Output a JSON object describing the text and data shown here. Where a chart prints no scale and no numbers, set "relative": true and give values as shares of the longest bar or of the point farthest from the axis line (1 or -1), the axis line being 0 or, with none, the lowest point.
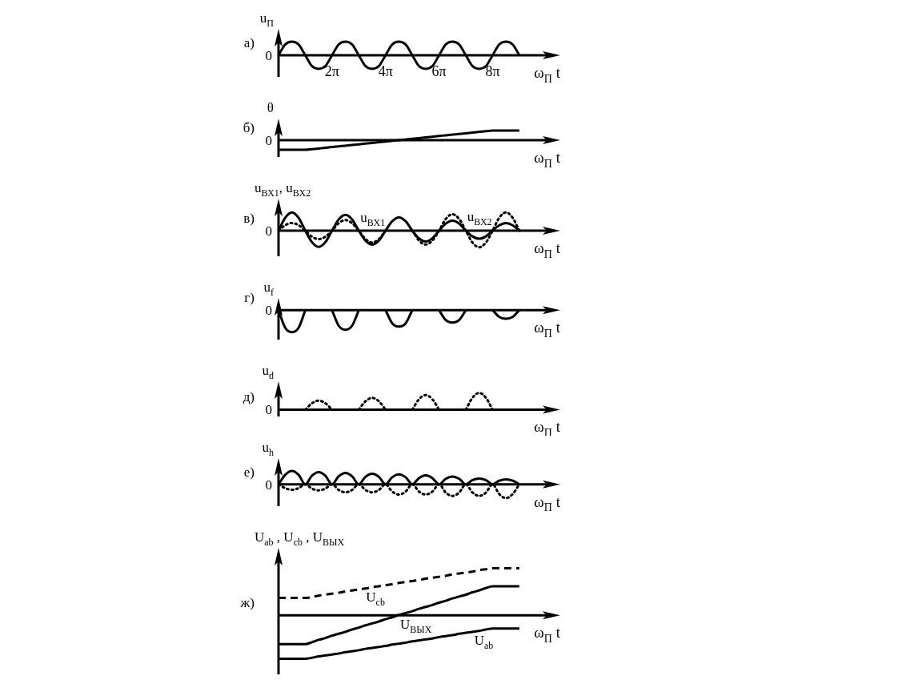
{
  "chart_data": [
    {
      "type": "line",
      "relative": true,
      "ylabel": "u$_{П}$",
      "xlabel": "ω$_{П}$ t",
      "annotations": [
        "а)",
        "0"
      ],
      "marker": "none",
      "tick_labels": "x",
      "categories": [
        null,
        null,
        null,
        null,
        null,
        null,
        null,
        null,
        "2π",
        null,
        null,
        null,
        null,
        null,
        null,
        null,
        "4π",
        null,
        null,
        null,
        null,
        null,
        null,
        null,
        "6π",
        null,
        null,
        null,
        null,
        null,
        null,
        null,
        "8π",
        null,
        null,
        null,
        null
      ],
      "series": [
        {
          "color": "#000000",
          "line_style": "solid",
          "values": [
            0,
            0.8,
            1,
            0.8,
            0,
            -0.8,
            -1,
            -0.8,
            0,
            0.8,
            1,
            0.8,
            0,
            -0.8,
            -1,
            -0.8,
            0,
            0.8,
            1,
            0.8,
            0,
            -0.8,
            -1,
            -0.8,
            0,
            0.8,
            1,
            0.8,
            0,
            -0.8,
            -1,
            -0.8,
            0,
            0.8,
            1,
            0.8,
            0
          ]
        }
      ]
    },
    {
      "type": "line",
      "relative": true,
      "ylabel": "θ",
      "xlabel": "ω$_{П}$ t",
      "annotations": [
        "б)",
        "0"
      ],
      "marker": "none",
      "tick_labels": false,
      "categories": [
        null,
        null,
        null,
        null,
        null,
        null,
        null,
        null,
        null,
        null,
        null,
        null,
        null,
        null,
        null,
        null,
        null,
        null,
        null,
        null,
        null,
        null,
        null,
        null,
        null,
        null,
        null,
        null,
        null,
        null,
        null,
        null,
        null,
        null,
        null,
        null,
        null
      ],
      "series": [
        {
          "color": "#000000",
          "line_style": "solid",
          "values": [
            -1,
            -1,
            -1,
            -1,
            -1,
            -0.93,
            -0.86,
            -0.79,
            -0.71,
            -0.64,
            -0.57,
            -0.5,
            -0.43,
            -0.36,
            -0.29,
            -0.21,
            -0.14,
            -0.07,
            0,
            0.07,
            0.14,
            0.21,
            0.29,
            0.36,
            0.43,
            0.5,
            0.57,
            0.64,
            0.71,
            0.79,
            0.86,
            0.93,
            1,
            1,
            1,
            1,
            1
          ]
        }
      ]
    },
    {
      "type": "line",
      "relative": true,
      "ylabel": "u$_{ВХ1}$, u$_{ВХ2}$",
      "xlabel": "ω$_{П}$ t",
      "annotations": [
        "в)",
        "0"
      ],
      "marker": "none",
      "tick_labels": false,
      "categories": [
        null,
        null,
        null,
        null,
        null,
        null,
        null,
        null,
        null,
        null,
        null,
        null,
        null,
        null,
        null,
        null,
        null,
        null,
        null,
        null,
        null,
        null,
        null,
        null,
        null,
        null,
        null,
        null,
        null,
        null,
        null,
        null,
        null,
        null,
        null,
        null,
        null
      ],
      "series": [
        {
          "name": "u$_{ВХ1}$",
          "color": "#000000",
          "line_style": "solid",
          "values": [
            0,
            0.71,
            1,
            0.71,
            0,
            -0.63,
            -0.89,
            -0.63,
            0,
            0.62,
            0.87,
            0.62,
            0,
            -0.54,
            -0.76,
            -0.54,
            0,
            0.52,
            0.73,
            0.52,
            0,
            -0.42,
            -0.59,
            -0.42,
            0,
            0.39,
            0.55,
            0.39,
            0,
            -0.31,
            -0.44,
            -0.31,
            0,
            0.3,
            0.42,
            0.3,
            0
          ]
        },
        {
          "name": "u$_{ВХ2}$",
          "color": "#000000",
          "line_style": "dotted",
          "values": [
            0,
            0.3,
            0.42,
            0.3,
            0,
            -0.33,
            -0.46,
            -0.33,
            0,
            0.41,
            0.58,
            0.41,
            0,
            -0.46,
            -0.65,
            -0.46,
            0,
            null,
            null,
            null,
            0,
            -0.54,
            -0.76,
            -0.54,
            0,
            0.64,
            0.9,
            0.64,
            0,
            -0.65,
            -0.91,
            -0.65,
            0,
            0.71,
            1,
            0.71,
            0
          ]
        }
      ]
    },
    {
      "type": "line",
      "relative": true,
      "ylabel": "u$_{f}$",
      "xlabel": "ω$_{П}$ t",
      "annotations": [
        "г)",
        "0"
      ],
      "marker": "none",
      "tick_labels": false,
      "categories": [
        null,
        null,
        null,
        null,
        null,
        null,
        null,
        null,
        null,
        null,
        null,
        null,
        null,
        null,
        null,
        null,
        null,
        null,
        null,
        null,
        null,
        null,
        null,
        null,
        null,
        null,
        null,
        null,
        null,
        null,
        null,
        null,
        null,
        null,
        null,
        null,
        null
      ],
      "series": [
        {
          "color": "#000000",
          "line_style": "solid",
          "values": [
            0,
            -0.8,
            -1,
            -0.8,
            0,
            null,
            null,
            null,
            0,
            -0.71,
            -0.89,
            -0.71,
            0,
            null,
            null,
            null,
            0,
            -0.6,
            -0.75,
            -0.6,
            0,
            null,
            null,
            null,
            0,
            -0.45,
            -0.56,
            -0.45,
            0,
            null,
            null,
            null,
            0,
            -0.31,
            -0.39,
            -0.31,
            0
          ]
        }
      ]
    },
    {
      "type": "line",
      "relative": true,
      "ylabel": "u$_{d}$",
      "xlabel": "ω$_{П}$ t",
      "annotations": [
        "д)",
        "0"
      ],
      "marker": "none",
      "tick_labels": false,
      "categories": [
        null,
        null,
        null,
        null,
        null,
        null,
        null,
        null,
        null,
        null,
        null,
        null,
        null,
        null,
        null,
        null,
        null,
        null,
        null,
        null,
        null,
        null,
        null,
        null,
        null,
        null,
        null,
        null,
        null,
        null,
        null,
        null,
        null,
        null,
        null,
        null,
        null
      ],
      "series": [
        {
          "color": "#000000",
          "line_style": "dotted",
          "values": [
            null,
            null,
            null,
            null,
            0,
            0.38,
            0.54,
            0.38,
            0,
            null,
            null,
            null,
            0,
            0.5,
            0.7,
            0.5,
            0,
            null,
            null,
            null,
            0,
            0.62,
            0.87,
            0.62,
            0,
            null,
            null,
            null,
            0,
            0.71,
            1,
            0.71,
            0,
            null,
            null,
            null,
            null
          ]
        }
      ]
    },
    {
      "type": "line",
      "relative": true,
      "ylabel": "u$_{h}$",
      "xlabel": "ω$_{П}$ t",
      "annotations": [
        "е)",
        "0"
      ],
      "marker": "none",
      "tick_labels": false,
      "categories": [
        null,
        null,
        null,
        null,
        null,
        null,
        null,
        null,
        null,
        null,
        null,
        null,
        null,
        null,
        null,
        null,
        null,
        null,
        null,
        null,
        null,
        null,
        null,
        null,
        null,
        null,
        null,
        null,
        null,
        null,
        null,
        null,
        null,
        null,
        null,
        null,
        null
      ],
      "series": [
        {
          "color": "#000000",
          "line_style": "solid",
          "values": [
            0,
            0.68,
            0.96,
            0.68,
            0,
            0.62,
            0.88,
            0.62,
            0,
            0.58,
            0.82,
            0.58,
            0,
            0.54,
            0.76,
            0.54,
            0,
            0.51,
            0.72,
            0.51,
            0,
            0.45,
            0.64,
            0.45,
            0,
            0.4,
            0.56,
            0.4,
            0,
            0.3,
            0.42,
            0.3,
            0,
            0.26,
            0.36,
            0.26,
            0
          ]
        },
        {
          "color": "#000000",
          "line_style": "dotted",
          "values": [
            0,
            -0.28,
            -0.4,
            -0.28,
            0,
            -0.31,
            -0.44,
            -0.31,
            0,
            -0.41,
            -0.58,
            -0.41,
            0,
            -0.41,
            -0.58,
            -0.41,
            0,
            -0.53,
            -0.74,
            -0.53,
            0,
            -0.53,
            -0.74,
            -0.53,
            0,
            -0.6,
            -0.84,
            -0.6,
            0,
            -0.6,
            -0.84,
            -0.6,
            0,
            -0.71,
            -1,
            -0.71,
            0
          ]
        }
      ]
    },
    {
      "type": "line",
      "relative": true,
      "ylabel": "U$_{ab}$ , U$_{cb}$ , U$_{ВЫХ}$",
      "xlabel": "ω$_{П}$ t",
      "annotations": [
        "ж)"
      ],
      "marker": "none",
      "tick_labels": false,
      "categories": [
        null,
        null,
        null,
        null,
        null,
        null,
        null,
        null,
        null,
        null,
        null,
        null,
        null,
        null,
        null,
        null,
        null,
        null,
        null,
        null,
        null,
        null,
        null,
        null,
        null,
        null,
        null,
        null,
        null,
        null,
        null,
        null,
        null,
        null,
        null,
        null,
        null
      ],
      "series": [
        {
          "name": "U$_{cb}$",
          "color": "#000000",
          "line_style": "dashed",
          "values": [
            0.37,
            0.37,
            0.37,
            0.37,
            0.37,
            0.39,
            0.42,
            0.44,
            0.46,
            0.48,
            0.51,
            0.53,
            0.55,
            0.57,
            0.6,
            0.62,
            0.64,
            0.66,
            0.69,
            0.71,
            0.73,
            0.75,
            0.78,
            0.8,
            0.82,
            0.84,
            0.87,
            0.89,
            0.91,
            0.93,
            0.96,
            0.98,
            1,
            1,
            1,
            1,
            1
          ]
        },
        {
          "name": "U$_{ВЫХ}$",
          "color": "#000000",
          "line_style": "solid",
          "values": [
            -0.61,
            -0.61,
            -0.61,
            -0.61,
            -0.61,
            -0.57,
            -0.52,
            -0.48,
            -0.43,
            -0.39,
            -0.35,
            -0.3,
            -0.26,
            -0.21,
            -0.17,
            -0.13,
            -0.08,
            -0.04,
            0.01,
            0.05,
            0.09,
            0.14,
            0.18,
            0.22,
            0.27,
            0.31,
            0.36,
            0.4,
            0.44,
            0.49,
            0.53,
            0.58,
            0.62,
            0.62,
            0.62,
            0.62,
            0.62
          ]
        },
        {
          "name": "U$_{ab}$",
          "color": "#000000",
          "line_style": "solid",
          "values": [
            -0.92,
            -0.92,
            -0.92,
            -0.92,
            -0.92,
            -0.9,
            -0.87,
            -0.85,
            -0.83,
            -0.81,
            -0.78,
            -0.76,
            -0.74,
            -0.71,
            -0.69,
            -0.67,
            -0.65,
            -0.62,
            -0.6,
            -0.58,
            -0.55,
            -0.53,
            -0.51,
            -0.49,
            -0.46,
            -0.44,
            -0.42,
            -0.39,
            -0.37,
            -0.35,
            -0.33,
            -0.3,
            -0.28,
            -0.28,
            -0.28,
            -0.28,
            -0.28
          ]
        }
      ]
    }
  ]
}
